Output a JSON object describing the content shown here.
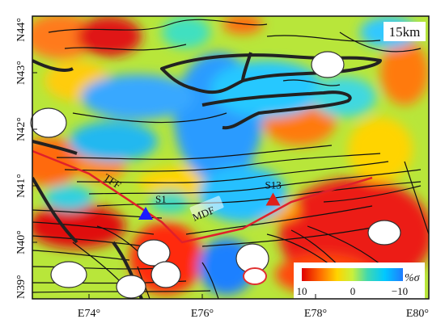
{
  "map": {
    "depth_label": "15km",
    "x_ticks": [
      "E74°",
      "E76°",
      "E78°",
      "E80°"
    ],
    "y_ticks": [
      "N44°",
      "N43°",
      "N42°",
      "N41°",
      "N40°",
      "N39°"
    ],
    "stations": [
      {
        "name": "S1",
        "color": "#1a1aff",
        "lon": 75.0,
        "lat": 40.5
      },
      {
        "name": "S13",
        "color": "#e0201a",
        "lon": 77.25,
        "lat": 40.75
      }
    ],
    "fault_labels": [
      "TFF",
      "MDF"
    ],
    "colorbar": {
      "unit": "%σ",
      "ticks": [
        "10",
        "0",
        "−10"
      ],
      "colors": [
        "#e00000",
        "#ff6a00",
        "#ffd400",
        "#c8f03c",
        "#40d8b0",
        "#00c8ff",
        "#1f7bff"
      ]
    }
  }
}
